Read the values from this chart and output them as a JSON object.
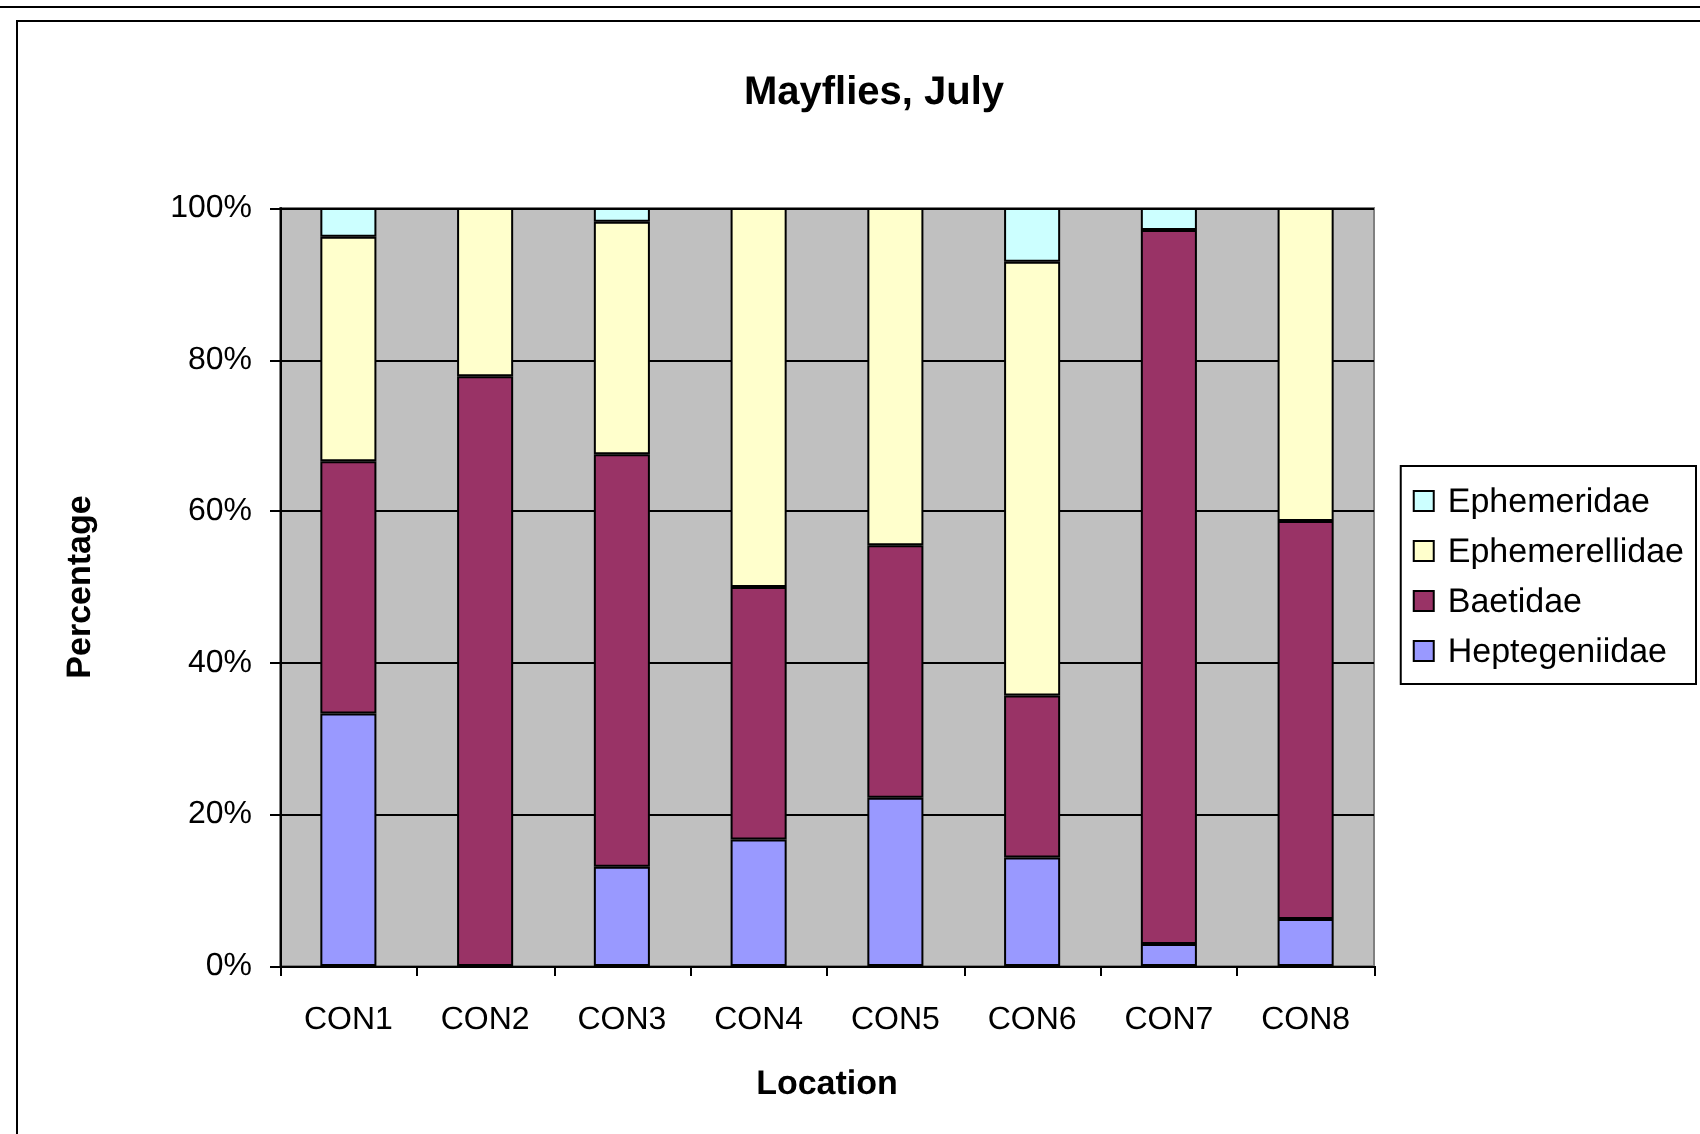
{
  "chart_data": {
    "type": "bar",
    "title": "Mayflies, July",
    "xlabel": "Location",
    "ylabel": "Percentage",
    "categories": [
      "CON1",
      "CON2",
      "CON3",
      "CON4",
      "CON5",
      "CON6",
      "CON7",
      "CON8"
    ],
    "series": [
      {
        "name": "Heptegeniidae",
        "color": "#9999ff",
        "values": [
          33.3,
          0,
          13.1,
          16.7,
          22.2,
          14.3,
          2.9,
          6.2
        ]
      },
      {
        "name": "Baetidae",
        "color": "#993366",
        "values": [
          33.3,
          77.8,
          54.4,
          33.3,
          33.3,
          21.4,
          94.2,
          52.5
        ]
      },
      {
        "name": "Ephemerellidae",
        "color": "#ffffcc",
        "values": [
          29.6,
          22.2,
          30.7,
          50.0,
          44.5,
          57.2,
          0,
          41.3
        ]
      },
      {
        "name": "Ephemeridae",
        "color": "#ccffff",
        "values": [
          3.8,
          0,
          1.8,
          0,
          0,
          7.1,
          2.9,
          0
        ]
      }
    ],
    "stacked": true,
    "ylim": [
      0,
      100
    ],
    "yticks": [
      {
        "value": 0,
        "label": "0%"
      },
      {
        "value": 20,
        "label": "20%"
      },
      {
        "value": 40,
        "label": "40%"
      },
      {
        "value": 60,
        "label": "60%"
      },
      {
        "value": 80,
        "label": "80%"
      },
      {
        "value": 100,
        "label": "100%"
      }
    ],
    "grid": "y",
    "legend": "right"
  }
}
